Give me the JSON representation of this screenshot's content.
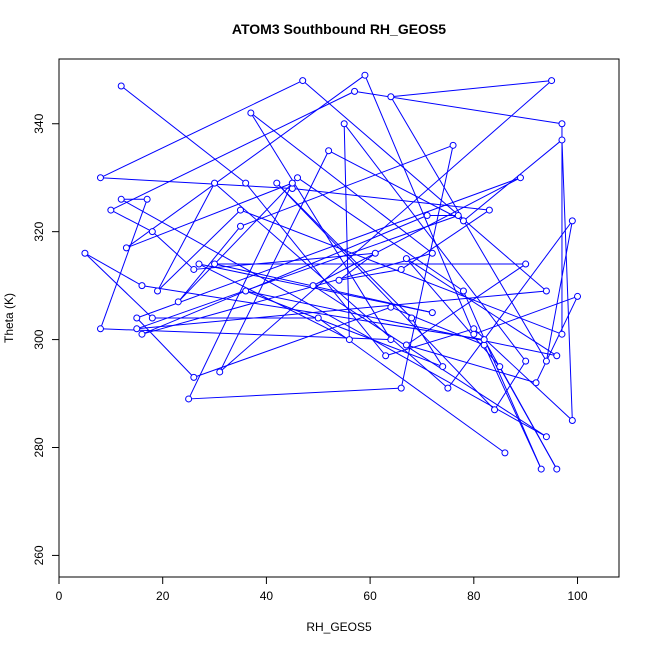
{
  "chart_data": {
    "type": "line",
    "title": "ATOM3 Southbound RH_GEOS5",
    "xlabel": "RH_GEOS5",
    "ylabel": "Theta (K)",
    "xlim": [
      0,
      108
    ],
    "ylim": [
      256,
      352
    ],
    "xticks": [
      0,
      20,
      40,
      60,
      80,
      100
    ],
    "yticks": [
      260,
      280,
      300,
      320,
      340
    ],
    "xtick_labels": [
      "0",
      "20",
      "40",
      "60",
      "80",
      "100"
    ],
    "ytick_labels": [
      "260",
      "280",
      "300",
      "320",
      "340"
    ],
    "grid": false,
    "legend": "none",
    "color": "#0000ff",
    "series": [
      {
        "x": [
          12,
          36,
          63,
          80,
          99,
          97,
          78,
          52,
          31,
          95,
          64,
          94,
          99,
          75,
          30,
          19,
          35,
          97,
          97,
          57,
          10,
          18,
          26,
          61,
          54,
          66,
          83,
          45,
          8,
          47,
          94,
          15,
          77,
          71,
          16,
          72,
          37,
          64,
          8,
          17,
          12,
          94,
          49,
          89,
          15,
          26,
          64,
          82,
          93,
          78,
          46,
          23,
          35,
          76,
          66,
          25,
          45,
          13,
          59,
          80,
          100,
          92,
          67,
          90,
          30,
          72,
          27,
          56,
          55,
          90,
          84,
          42,
          68,
          74,
          36,
          96,
          67,
          85,
          96,
          82,
          16,
          5,
          18,
          50,
          86
        ],
        "y": [
          347,
          329,
          297,
          302,
          285,
          337,
          322,
          335,
          294,
          348,
          345,
          296,
          322,
          291,
          329,
          309,
          324,
          301,
          340,
          346,
          324,
          320,
          313,
          316,
          311,
          313,
          324,
          328,
          330,
          348,
          309,
          302,
          323,
          323,
          301,
          316,
          342,
          300,
          302,
          326,
          326,
          282,
          310,
          330,
          304,
          293,
          306,
          299,
          276,
          309,
          330,
          307,
          321,
          336,
          291,
          289,
          329,
          317,
          349,
          301,
          308,
          292,
          299,
          314,
          314,
          305,
          314,
          300,
          340,
          296,
          287,
          329,
          304,
          295,
          309,
          297,
          315,
          295,
          276,
          300,
          310,
          316,
          304,
          304,
          279
        ]
      }
    ]
  }
}
